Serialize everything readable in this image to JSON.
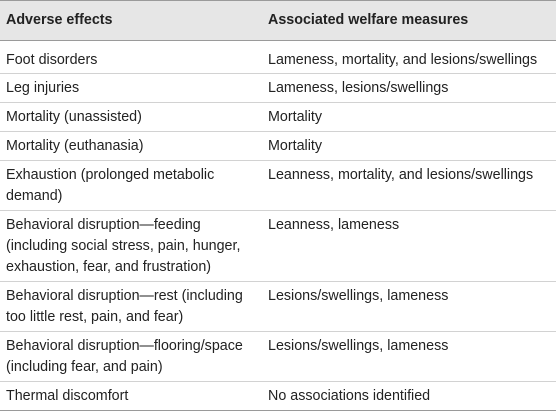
{
  "table": {
    "headers": [
      "Adverse effects",
      "Associated welfare measures"
    ],
    "rows": [
      {
        "effect": "Foot disorders",
        "measures": "Lameness, mortality, and lesions/swellings"
      },
      {
        "effect": "Leg injuries",
        "measures": "Lameness, lesions/swellings"
      },
      {
        "effect": "Mortality (unassisted)",
        "measures": "Mortality"
      },
      {
        "effect": "Mortality (euthanasia)",
        "measures": "Mortality"
      },
      {
        "effect": "Exhaustion (prolonged metabolic demand)",
        "measures": "Leanness, mortality, and lesions/swellings"
      },
      {
        "effect": "Behavioral disruption—feeding (including social stress, pain, hunger, exhaustion, fear, and frustration)",
        "measures": "Leanness, lameness"
      },
      {
        "effect": "Behavioral disruption—rest (including too little rest, pain, and fear)",
        "measures": "Lesions/swellings, lameness"
      },
      {
        "effect": "Behavioral disruption—flooring/space (including fear, and pain)",
        "measures": "Lesions/swellings, lameness"
      },
      {
        "effect": "Thermal discomfort",
        "measures": "No associations identified"
      }
    ]
  }
}
